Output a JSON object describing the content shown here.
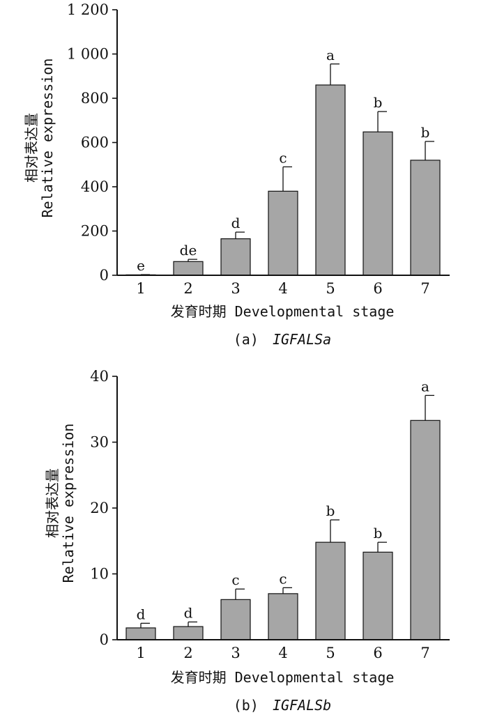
{
  "chart_data": [
    {
      "type": "bar",
      "categories": [
        "1",
        "2",
        "3",
        "4",
        "5",
        "6",
        "7"
      ],
      "values": [
        2,
        62,
        165,
        380,
        860,
        648,
        520
      ],
      "errors": [
        1,
        10,
        30,
        110,
        95,
        92,
        85
      ],
      "letters": [
        "e",
        "de",
        "d",
        "c",
        "a",
        "b",
        "b"
      ],
      "ylim": [
        0,
        1200
      ],
      "yticks": [
        0,
        200,
        400,
        600,
        800,
        1000,
        1200
      ],
      "ytick_labels": [
        "0",
        "200",
        "400",
        "600",
        "800",
        "1 000",
        "1 200"
      ],
      "ylabel_cn": "相对表达量",
      "ylabel_en": "Relative expression",
      "xlabel": "发育时期 Developmental stage",
      "caption_prefix": "(a)",
      "caption_gene": "IGFALSa",
      "bar_color": "#a6a6a6"
    },
    {
      "type": "bar",
      "categories": [
        "1",
        "2",
        "3",
        "4",
        "5",
        "6",
        "7"
      ],
      "values": [
        1.8,
        2.0,
        6.1,
        7.0,
        14.8,
        13.3,
        33.3
      ],
      "errors": [
        0.7,
        0.7,
        1.6,
        0.9,
        3.4,
        1.5,
        3.8
      ],
      "letters": [
        "d",
        "d",
        "c",
        "c",
        "b",
        "b",
        "a"
      ],
      "ylim": [
        0,
        40
      ],
      "yticks": [
        0,
        10,
        20,
        30,
        40
      ],
      "ytick_labels": [
        "0",
        "10",
        "20",
        "30",
        "40"
      ],
      "ylabel_cn": "相对表达量",
      "ylabel_en": "Relative expression",
      "xlabel": "发育时期 Developmental stage",
      "caption_prefix": "(b)",
      "caption_gene": "IGFALSb",
      "bar_color": "#a6a6a6"
    }
  ]
}
